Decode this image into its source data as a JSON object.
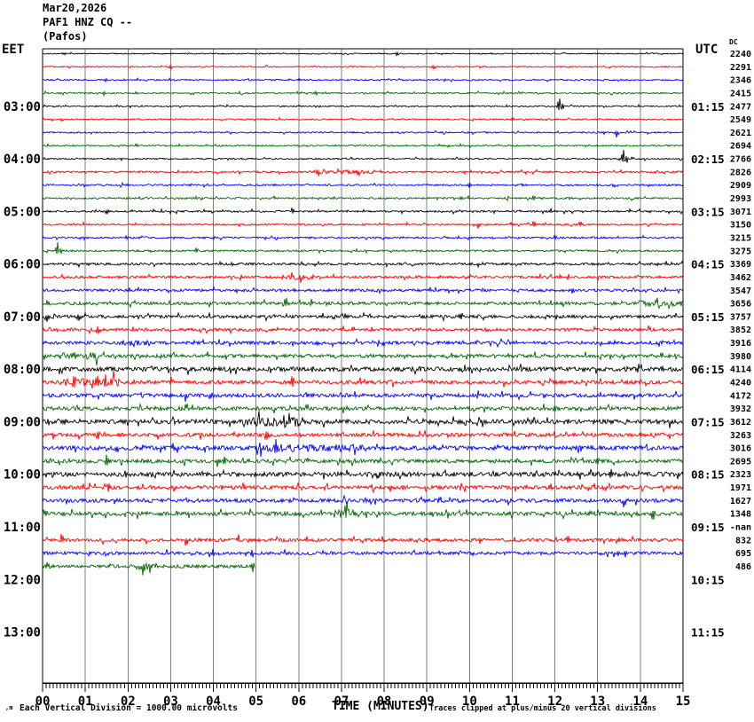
{
  "header": {
    "date": "Mar20,2026",
    "station": "PAF1 HNZ CQ --",
    "location": "(Pafos)"
  },
  "axes": {
    "left_label": "EET",
    "right_label": "UTC",
    "dc_label": "DC",
    "left_hours": [
      "03:00",
      "04:00",
      "05:00",
      "06:00",
      "07:00",
      "08:00",
      "09:00",
      "10:00",
      "11:00",
      "12:00",
      "13:00"
    ],
    "right_hours": [
      "01:15",
      "02:15",
      "03:15",
      "04:15",
      "05:15",
      "06:15",
      "07:15",
      "08:15",
      "09:15",
      "10:15",
      "11:15"
    ],
    "x_ticks": [
      "00",
      "01",
      "02",
      "03",
      "04",
      "05",
      "06",
      "07",
      "08",
      "09",
      "10",
      "11",
      "12",
      "13",
      "14",
      "15"
    ],
    "x_title": "TIME (MINUTES)"
  },
  "footer": {
    "mark": ",m",
    "left": "Each Vertical Division = 1000.00 microvolts",
    "right": "Traces clipped at plus/minus 20 vertical divisions"
  },
  "palette": {
    "black": "#000000",
    "red": "#ff0000",
    "blue": "#0000ff",
    "green": "#006600",
    "grid": "#808080",
    "frame": "#000000"
  },
  "chart_data": {
    "type": "line",
    "subtype": "seismogram-helicorder",
    "title": "PAF1 HNZ CQ -- (Pafos) Mar20,2026",
    "xlabel": "TIME (MINUTES)",
    "x_range_minutes": [
      0,
      15
    ],
    "minutes_per_row": 15,
    "color_cycle": [
      "black",
      "red",
      "blue",
      "green"
    ],
    "amplitude_note": "Each Vertical Division = 1000.00 microvolts",
    "clip_note": "Traces clipped at plus/minus 20 vertical divisions",
    "rows": [
      {
        "v": "2240",
        "c": "black",
        "a": 0.6,
        "s": [
          [
            0.5,
            2,
            -1
          ],
          [
            8.3,
            2,
            -1
          ],
          [
            10.5,
            1.5,
            1
          ]
        ]
      },
      {
        "v": "2291",
        "c": "red",
        "a": 0.7,
        "s": [
          [
            3.0,
            4,
            -1
          ],
          [
            9.15,
            3,
            -1
          ]
        ]
      },
      {
        "v": "2346",
        "c": "blue",
        "a": 0.8,
        "s": [
          [
            1.5,
            2,
            -1
          ],
          [
            6.0,
            1.5,
            1
          ]
        ]
      },
      {
        "v": "2415",
        "c": "green",
        "a": 0.8,
        "s": [
          [
            1.43,
            3,
            -1
          ],
          [
            2.2,
            2,
            1
          ],
          [
            6.4,
            2,
            -1
          ]
        ]
      },
      {
        "v": "2477",
        "c": "black",
        "a": 0.7,
        "s": [
          [
            12.1,
            11,
            1
          ],
          [
            12.17,
            6,
            -1
          ]
        ]
      },
      {
        "v": "2549",
        "c": "red",
        "a": 0.8,
        "s": [
          [
            0.45,
            3,
            -1
          ],
          [
            11.0,
            2,
            1
          ]
        ]
      },
      {
        "v": "2621",
        "c": "blue",
        "a": 0.8,
        "s": [
          [
            13.45,
            6,
            -1
          ]
        ]
      },
      {
        "v": "2694",
        "c": "green",
        "a": 0.8,
        "s": [
          [
            2.2,
            2,
            1
          ],
          [
            9.5,
            2,
            -1
          ]
        ]
      },
      {
        "v": "2766",
        "c": "black",
        "a": 0.8,
        "s": [
          [
            13.6,
            12,
            1
          ],
          [
            13.67,
            7,
            -1
          ]
        ]
      },
      {
        "v": "2826",
        "c": "red",
        "a": 1.0,
        "s": [
          [
            6.45,
            5,
            -1
          ],
          [
            6.9,
            3,
            1
          ],
          [
            7.4,
            3,
            -1
          ]
        ],
        "b": [
          [
            6.2,
            7.8,
            2.2
          ]
        ]
      },
      {
        "v": "2909",
        "c": "blue",
        "a": 1.0,
        "s": [
          [
            10.0,
            4,
            -1
          ],
          [
            13.4,
            3,
            -1
          ]
        ]
      },
      {
        "v": "2993",
        "c": "green",
        "a": 1.0,
        "s": [
          [
            9.8,
            3,
            1
          ],
          [
            11.5,
            4,
            1
          ]
        ]
      },
      {
        "v": "3071",
        "c": "black",
        "a": 1.0,
        "s": [
          [
            1.5,
            5,
            -1
          ],
          [
            5.85,
            5,
            1
          ],
          [
            11.9,
            4,
            1
          ]
        ]
      },
      {
        "v": "3150",
        "c": "red",
        "a": 1.0,
        "s": [
          [
            10.2,
            4,
            -1
          ],
          [
            11.5,
            5,
            1
          ],
          [
            12.6,
            4,
            1
          ]
        ]
      },
      {
        "v": "3215",
        "c": "blue",
        "a": 1.0,
        "s": [
          [
            4.0,
            2,
            -1
          ],
          [
            12.0,
            3,
            1
          ]
        ]
      },
      {
        "v": "3275",
        "c": "green",
        "a": 1.0,
        "s": [
          [
            0.35,
            10,
            1
          ],
          [
            0.42,
            4,
            -1
          ],
          [
            3.6,
            3,
            1
          ]
        ]
      },
      {
        "v": "3369",
        "c": "black",
        "a": 1.3,
        "s": [
          [
            10.2,
            4,
            -1
          ],
          [
            14.6,
            3,
            1
          ]
        ]
      },
      {
        "v": "3462",
        "c": "red",
        "a": 1.4,
        "s": [
          [
            5.85,
            6,
            1
          ],
          [
            6.05,
            4,
            -1
          ],
          [
            9.3,
            3,
            1
          ]
        ],
        "b": [
          [
            5.6,
            6.4,
            2.2
          ]
        ]
      },
      {
        "v": "3547",
        "c": "blue",
        "a": 1.5,
        "s": [
          [
            5.9,
            4,
            1
          ],
          [
            12.4,
            3,
            -1
          ]
        ]
      },
      {
        "v": "3656",
        "c": "green",
        "a": 1.7,
        "s": [
          [
            0.12,
            4,
            1
          ],
          [
            5.7,
            7,
            1
          ],
          [
            6.3,
            4,
            1
          ],
          [
            14.4,
            6,
            1
          ]
        ],
        "b": [
          [
            13.9,
            15,
            2
          ]
        ]
      },
      {
        "v": "3757",
        "c": "black",
        "a": 1.7,
        "s": [
          [
            0.1,
            5,
            -1
          ],
          [
            0.85,
            5,
            -1
          ],
          [
            9.8,
            5,
            1
          ]
        ]
      },
      {
        "v": "3852",
        "c": "red",
        "a": 1.7,
        "s": [
          [
            1.3,
            7,
            -1
          ],
          [
            7.3,
            4,
            1
          ],
          [
            10.4,
            5,
            1
          ],
          [
            14.2,
            4,
            1
          ]
        ]
      },
      {
        "v": "3916",
        "c": "blue",
        "a": 1.8,
        "s": [
          [
            2.1,
            4,
            -1
          ],
          [
            5.4,
            4,
            -1
          ],
          [
            8.0,
            4,
            -1
          ]
        ],
        "b": [
          [
            1.8,
            2.5,
            1.8
          ]
        ]
      },
      {
        "v": "3980",
        "c": "green",
        "a": 1.9,
        "s": [
          [
            0.6,
            4,
            1
          ],
          [
            14.5,
            8,
            1
          ]
        ],
        "b": [
          [
            0.4,
            1.3,
            2.2
          ]
        ]
      },
      {
        "v": "4114",
        "c": "black",
        "a": 2.5,
        "s": [
          [
            0.4,
            5,
            -1
          ],
          [
            6.3,
            4,
            1
          ],
          [
            14.5,
            7,
            1
          ]
        ]
      },
      {
        "v": "4240",
        "c": "red",
        "a": 2.1,
        "s": [
          [
            0.73,
            9,
            1
          ],
          [
            1.3,
            9,
            -1
          ],
          [
            1.45,
            7,
            1
          ],
          [
            3.0,
            6,
            1
          ],
          [
            5.85,
            10,
            1
          ]
        ],
        "b": [
          [
            0.4,
            1.8,
            2.4
          ]
        ]
      },
      {
        "v": "4172",
        "c": "blue",
        "a": 2.1,
        "s": [
          [
            3.35,
            6,
            -1
          ],
          [
            6.2,
            4,
            1
          ],
          [
            10.2,
            5,
            1
          ]
        ]
      },
      {
        "v": "3932",
        "c": "green",
        "a": 2.1,
        "s": [
          [
            3.5,
            4,
            1
          ],
          [
            6.2,
            5,
            1
          ],
          [
            12.0,
            3,
            1
          ]
        ]
      },
      {
        "v": "3612",
        "c": "black",
        "a": 2.5,
        "s": [
          [
            0.15,
            4,
            -1
          ],
          [
            0.5,
            4,
            -1
          ],
          [
            3.1,
            4,
            -1
          ],
          [
            5.2,
            7,
            -1
          ],
          [
            5.65,
            9,
            -1
          ],
          [
            14.7,
            6,
            -1
          ]
        ],
        "b": [
          [
            4.6,
            6.1,
            2.2
          ]
        ]
      },
      {
        "v": "3263",
        "c": "red",
        "a": 2.1,
        "s": [
          [
            1.3,
            4,
            -1
          ],
          [
            5.25,
            8,
            -1
          ],
          [
            12.0,
            4,
            1
          ]
        ]
      },
      {
        "v": "3016",
        "c": "blue",
        "a": 2.4,
        "s": [
          [
            3.05,
            4,
            1
          ],
          [
            5.45,
            8,
            1
          ],
          [
            9.2,
            4,
            1
          ]
        ],
        "b": [
          [
            5.0,
            7.5,
            1.8
          ]
        ]
      },
      {
        "v": "2695",
        "c": "green",
        "a": 2.1,
        "s": [
          [
            1.5,
            8,
            -1
          ],
          [
            4.1,
            7,
            -1
          ],
          [
            4.25,
            5,
            1
          ],
          [
            6.2,
            4,
            1
          ],
          [
            13.0,
            4,
            1
          ]
        ]
      },
      {
        "v": "2323",
        "c": "black",
        "a": 2.5,
        "s": [
          [
            1.95,
            6,
            1
          ],
          [
            5.0,
            3,
            -1
          ],
          [
            13.3,
            5,
            1
          ]
        ]
      },
      {
        "v": "1971",
        "c": "red",
        "a": 2.1,
        "s": [
          [
            1.55,
            5,
            1
          ],
          [
            4.2,
            3,
            1
          ],
          [
            11.9,
            4,
            1
          ]
        ]
      },
      {
        "v": "1627",
        "c": "blue",
        "a": 2.1,
        "s": [
          [
            9.3,
            4,
            1
          ],
          [
            13.6,
            4,
            -1
          ]
        ]
      },
      {
        "v": "1348",
        "c": "green",
        "a": 2.2,
        "s": [
          [
            0.1,
            5,
            1
          ],
          [
            0.5,
            5,
            -1
          ],
          [
            7.1,
            11,
            1
          ],
          [
            7.17,
            5,
            -1
          ],
          [
            12.4,
            5,
            1
          ],
          [
            14.3,
            9,
            -1
          ]
        ],
        "b": [
          [
            6.8,
            7.5,
            2
          ]
        ]
      },
      {
        "v": "-nan",
        "c": "black",
        "x": true
      },
      {
        "v": "832",
        "c": "red",
        "a": 1.8,
        "s": [
          [
            0.46,
            9,
            1
          ],
          [
            3.37,
            8,
            -1
          ],
          [
            4.6,
            6,
            1
          ],
          [
            12.3,
            7,
            1
          ],
          [
            13.5,
            4,
            -1
          ]
        ]
      },
      {
        "v": "695",
        "c": "blue",
        "a": 1.8,
        "s": [
          [
            4.0,
            4,
            -1
          ],
          [
            4.9,
            6,
            -1
          ],
          [
            9.3,
            4,
            1
          ],
          [
            13.65,
            6,
            -1
          ]
        ]
      },
      {
        "v": "486",
        "c": "green",
        "a": 1.8,
        "e": 4.97,
        "s": [
          [
            0.1,
            5,
            1
          ],
          [
            2.35,
            9,
            -1
          ],
          [
            2.52,
            6,
            -1
          ],
          [
            4.93,
            8,
            -1
          ]
        ],
        "b": [
          [
            2.2,
            2.7,
            2
          ]
        ]
      }
    ]
  }
}
